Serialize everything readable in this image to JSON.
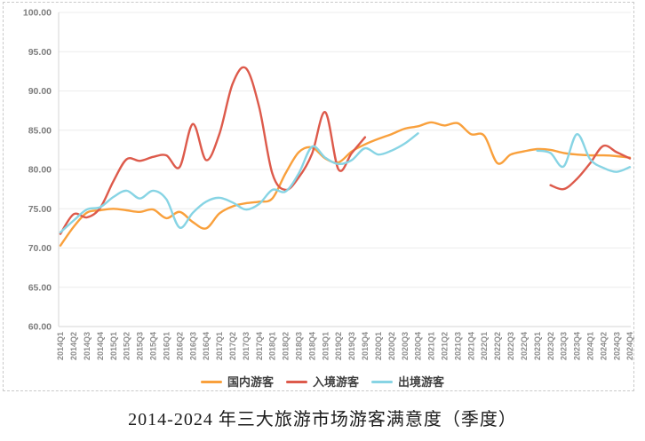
{
  "figure": {
    "caption": "2014-2024 年三大旅游市场游客满意度（季度）"
  },
  "chart_data": {
    "type": "line",
    "title": "2014-2024 年三大旅游市场游客满意度（季度）",
    "legend_position": "bottom",
    "grid": "horizontal",
    "ylim": [
      60,
      100
    ],
    "ytick_step": 5,
    "yticks": [
      "100.00",
      "95.00",
      "90.00",
      "85.00",
      "80.00",
      "75.00",
      "70.00",
      "65.00",
      "60.00"
    ],
    "categories": [
      "2014Q1",
      "2014Q2",
      "2014Q3",
      "2014Q4",
      "2015Q1",
      "2015Q2",
      "2015Q3",
      "2015Q4",
      "2016Q1",
      "2016Q2",
      "2016Q3",
      "2016Q4",
      "2017Q1",
      "2017Q2",
      "2017Q3",
      "2017Q4",
      "2018Q1",
      "2018Q2",
      "2018Q3",
      "2018Q4",
      "2019Q1",
      "2019Q2",
      "2019Q3",
      "2019Q4",
      "2020Q1",
      "2020Q2",
      "2020Q3",
      "2020Q4",
      "2021Q1",
      "2021Q2",
      "2021Q3",
      "2021Q4",
      "2022Q1",
      "2022Q2",
      "2022Q3",
      "2022Q4",
      "2023Q1",
      "2023Q2",
      "2023Q3",
      "2023Q4",
      "2024Q1",
      "2024Q2",
      "2024Q3",
      "2024Q4"
    ],
    "series": [
      {
        "key": "domestic",
        "name": "国内游客",
        "color": "#F9A03C",
        "values": [
          70.3,
          72.7,
          74.5,
          74.8,
          75.0,
          74.8,
          74.6,
          74.9,
          73.8,
          74.6,
          73.3,
          72.5,
          74.4,
          75.3,
          75.7,
          75.9,
          76.3,
          79.5,
          82.2,
          82.8,
          81.4,
          80.9,
          82.3,
          83.2,
          83.9,
          84.5,
          85.2,
          85.5,
          86.0,
          85.6,
          85.9,
          84.5,
          84.3,
          80.8,
          81.9,
          82.3,
          82.6,
          82.5,
          82.1,
          81.9,
          81.8,
          81.8,
          81.7,
          81.5
        ]
      },
      {
        "key": "inbound",
        "name": "入境游客",
        "color": "#DD5A4B",
        "values": [
          71.8,
          74.3,
          73.9,
          75.1,
          78.5,
          81.3,
          81.1,
          81.6,
          81.8,
          80.3,
          85.8,
          81.2,
          84.5,
          90.9,
          92.9,
          88.0,
          79.5,
          77.4,
          79.0,
          82.0,
          87.3,
          80.0,
          82.1,
          84.1,
          null,
          null,
          null,
          null,
          null,
          null,
          null,
          null,
          null,
          null,
          null,
          null,
          null,
          78.0,
          77.5,
          78.8,
          80.8,
          83.0,
          82.2,
          81.4
        ]
      },
      {
        "key": "outbound",
        "name": "出境游客",
        "color": "#87D4E4",
        "values": [
          72.0,
          73.5,
          74.9,
          75.2,
          76.5,
          77.3,
          76.3,
          77.3,
          76.2,
          72.6,
          74.5,
          75.9,
          76.4,
          75.8,
          74.9,
          75.6,
          77.4,
          77.2,
          79.5,
          82.9,
          81.5,
          80.7,
          81.2,
          82.7,
          81.9,
          82.4,
          83.3,
          84.6,
          null,
          null,
          null,
          null,
          null,
          null,
          null,
          null,
          82.4,
          82.1,
          80.4,
          84.5,
          81.3,
          80.2,
          79.7,
          80.3
        ]
      }
    ],
    "style": {
      "grid_color": "#ececec",
      "axis_color": "#d6d6d6",
      "tick_label_color": "#8c8c8c",
      "ytick_label_color": "#7d7d7d"
    }
  }
}
